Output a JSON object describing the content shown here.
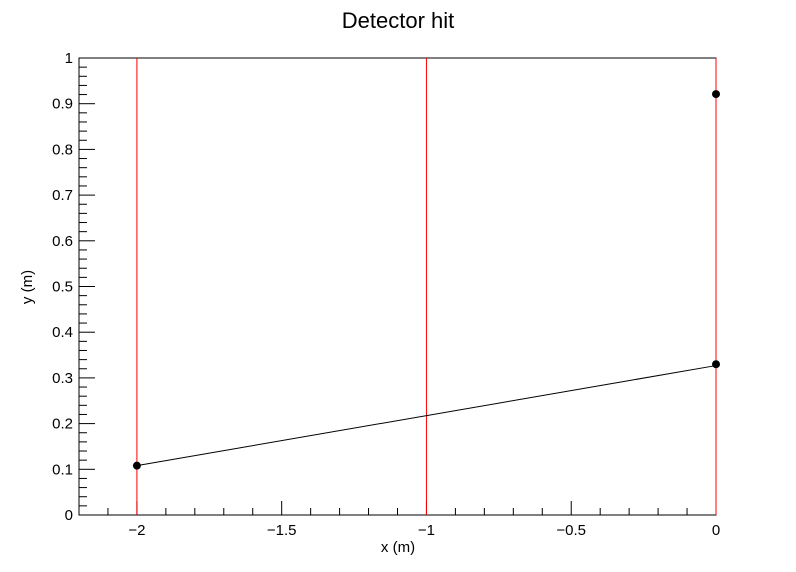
{
  "chart_data": {
    "type": "scatter",
    "title": "Detector hit",
    "xlabel": "x (m)",
    "ylabel": "y (m)",
    "xlim": [
      -2.2,
      0
    ],
    "ylim": [
      0,
      1
    ],
    "x_tick_labels": [
      {
        "value": -2,
        "label": "−2"
      },
      {
        "value": -1.5,
        "label": "−1.5"
      },
      {
        "value": -1,
        "label": "−1"
      },
      {
        "value": -0.5,
        "label": "−0.5"
      },
      {
        "value": 0,
        "label": "0"
      }
    ],
    "y_tick_labels": [
      {
        "value": 0,
        "label": "0"
      },
      {
        "value": 0.1,
        "label": "0.1"
      },
      {
        "value": 0.2,
        "label": "0.2"
      },
      {
        "value": 0.3,
        "label": "0.3"
      },
      {
        "value": 0.4,
        "label": "0.4"
      },
      {
        "value": 0.5,
        "label": "0.5"
      },
      {
        "value": 0.6,
        "label": "0.6"
      },
      {
        "value": 0.7,
        "label": "0.7"
      },
      {
        "value": 0.8,
        "label": "0.8"
      },
      {
        "value": 0.9,
        "label": "0.9"
      },
      {
        "value": 1,
        "label": "1"
      }
    ],
    "detector_planes_x": [
      -2,
      -1,
      0
    ],
    "points": [
      {
        "x": -2,
        "y": 0.108
      },
      {
        "x": 0,
        "y": 0.33
      },
      {
        "x": 0,
        "y": 0.921
      }
    ],
    "track_line": {
      "x": [
        -2,
        0
      ],
      "y": [
        0.108,
        0.327
      ]
    },
    "grid": false,
    "colors": {
      "detector_plane": "#ff0000",
      "points": "#000000",
      "track": "#000000",
      "axes": "#000000"
    }
  }
}
